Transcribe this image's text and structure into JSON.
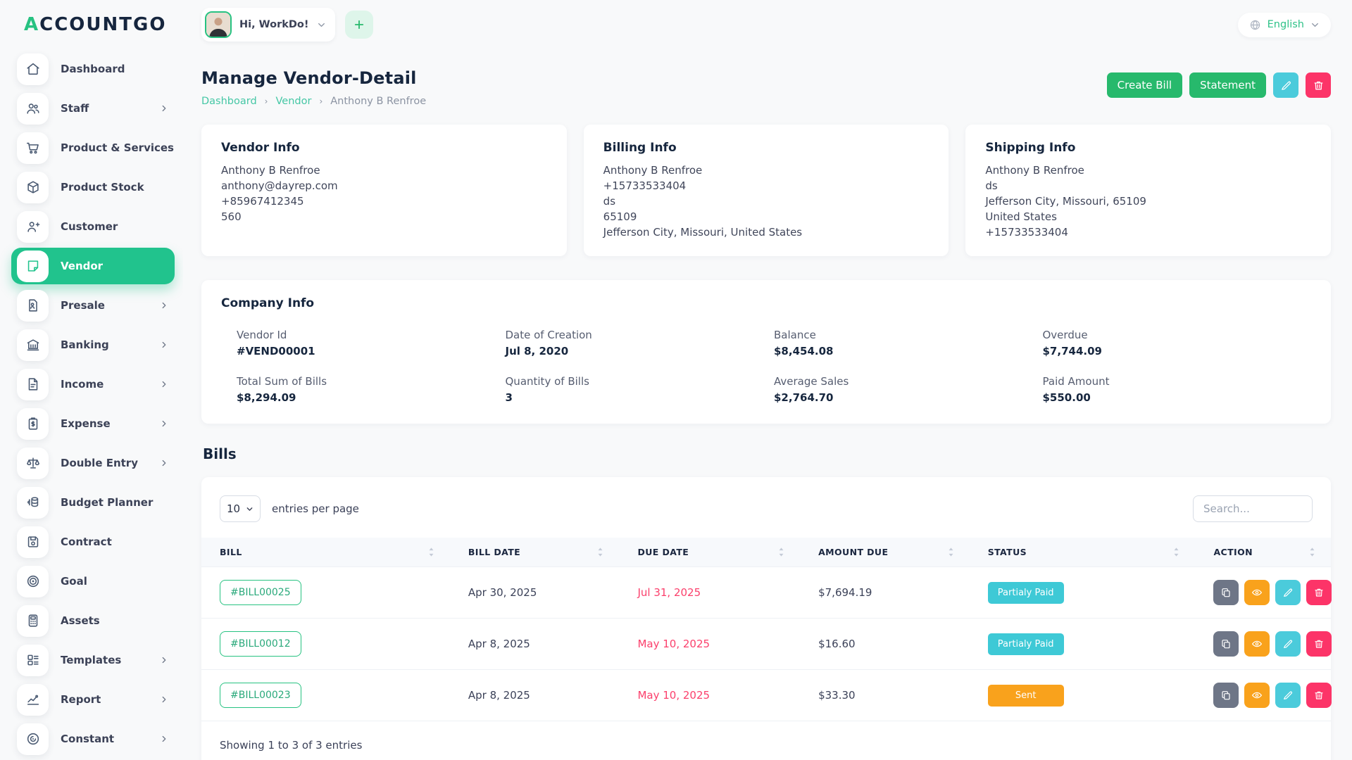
{
  "logo": {
    "first": "A",
    "rest": "CCOUNTGO"
  },
  "header": {
    "greeting": "Hi, WorkDo!",
    "language": "English"
  },
  "page": {
    "title": "Manage Vendor-Detail",
    "breadcrumb": [
      "Dashboard",
      "Vendor",
      "Anthony B Renfroe"
    ]
  },
  "actions": {
    "create_bill": "Create Bill",
    "statement": "Statement"
  },
  "sidebar": {
    "items": [
      {
        "label": "Dashboard",
        "icon": "home-icon",
        "chevron": false,
        "active": false
      },
      {
        "label": "Staff",
        "icon": "staff-users-icon",
        "chevron": true,
        "active": false
      },
      {
        "label": "Product & Services",
        "icon": "cart-icon",
        "chevron": false,
        "active": false
      },
      {
        "label": "Product Stock",
        "icon": "box-icon",
        "chevron": false,
        "active": false
      },
      {
        "label": "Customer",
        "icon": "user-plus-icon",
        "chevron": false,
        "active": false
      },
      {
        "label": "Vendor",
        "icon": "vendor-note-icon",
        "chevron": false,
        "active": true
      },
      {
        "label": "Presale",
        "icon": "presale-doc-icon",
        "chevron": true,
        "active": false
      },
      {
        "label": "Banking",
        "icon": "bank-icon",
        "chevron": true,
        "active": false
      },
      {
        "label": "Income",
        "icon": "income-file-icon",
        "chevron": true,
        "active": false
      },
      {
        "label": "Expense",
        "icon": "expense-clipboard-icon",
        "chevron": true,
        "active": false
      },
      {
        "label": "Double Entry",
        "icon": "scale-icon",
        "chevron": true,
        "active": false
      },
      {
        "label": "Budget Planner",
        "icon": "coins-icon",
        "chevron": false,
        "active": false
      },
      {
        "label": "Contract",
        "icon": "contract-floppy-icon",
        "chevron": false,
        "active": false
      },
      {
        "label": "Goal",
        "icon": "target-icon",
        "chevron": false,
        "active": false
      },
      {
        "label": "Assets",
        "icon": "calculator-icon",
        "chevron": false,
        "active": false
      },
      {
        "label": "Templates",
        "icon": "templates-layout-icon",
        "chevron": true,
        "active": false
      },
      {
        "label": "Report",
        "icon": "report-chart-icon",
        "chevron": true,
        "active": false
      },
      {
        "label": "Constant",
        "icon": "constant-spiral-icon",
        "chevron": true,
        "active": false
      }
    ]
  },
  "cards": {
    "vendor_info": {
      "title": "Vendor Info",
      "lines": [
        "Anthony B Renfroe",
        "anthony@dayrep.com",
        "+85967412345",
        "560"
      ]
    },
    "billing_info": {
      "title": "Billing Info",
      "lines": [
        "Anthony B Renfroe",
        "+15733533404",
        "ds",
        "65109",
        "Jefferson City, Missouri, United States"
      ]
    },
    "shipping_info": {
      "title": "Shipping Info",
      "lines": [
        "Anthony B Renfroe",
        "ds",
        "Jefferson City, Missouri, 65109",
        "United States",
        "+15733533404"
      ]
    }
  },
  "company": {
    "title": "Company Info",
    "stats": [
      {
        "label": "Vendor Id",
        "value": "#VEND00001"
      },
      {
        "label": "Date of Creation",
        "value": "Jul 8, 2020"
      },
      {
        "label": "Balance",
        "value": "$8,454.08"
      },
      {
        "label": "Overdue",
        "value": "$7,744.09"
      },
      {
        "label": "Total Sum of Bills",
        "value": "$8,294.09"
      },
      {
        "label": "Quantity of Bills",
        "value": "3"
      },
      {
        "label": "Average Sales",
        "value": "$2,764.70"
      },
      {
        "label": "Paid Amount",
        "value": "$550.00"
      }
    ]
  },
  "bills": {
    "heading": "Bills",
    "controls": {
      "entries_value": "10",
      "entries_label": "entries per page",
      "search_placeholder": "Search..."
    },
    "columns": [
      "BILL",
      "BILL DATE",
      "DUE DATE",
      "AMOUNT DUE",
      "STATUS",
      "ACTION"
    ],
    "rows": [
      {
        "bill": "#BILL00025",
        "bill_date": "Apr 30, 2025",
        "due_date": "Jul 31, 2025",
        "amount_due": "$7,694.19",
        "status": "Partialy Paid",
        "status_type": "partial"
      },
      {
        "bill": "#BILL00012",
        "bill_date": "Apr 8, 2025",
        "due_date": "May 10, 2025",
        "amount_due": "$16.60",
        "status": "Partialy Paid",
        "status_type": "partial"
      },
      {
        "bill": "#BILL00023",
        "bill_date": "Apr 8, 2025",
        "due_date": "May 10, 2025",
        "amount_due": "$33.30",
        "status": "Sent",
        "status_type": "sent"
      }
    ],
    "footer": "Showing 1 to 3 of 3 entries"
  },
  "colors": {
    "primary_green": "#27b96c",
    "sidebar_active": "#21c38d",
    "breadcrumb_link": "#45c7a5",
    "badge_partialy_paid": "#3ec9d6",
    "badge_sent": "#f9a21c",
    "due_date": "#fb406c",
    "action_copy": "#6e7687",
    "action_view": "#f9a21c",
    "action_edit": "#4bcbdb",
    "action_delete": "#fc3468"
  }
}
